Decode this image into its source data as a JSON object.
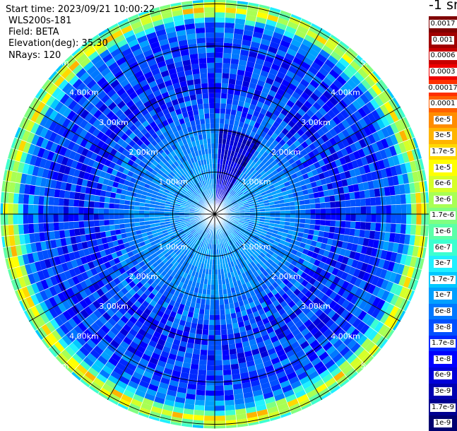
{
  "info": {
    "start_time": "Start time: 2023/09/21 10:00:22",
    "instrument": "WLS200s-181",
    "field": "Field: BETA",
    "elevation": "Elevation(deg): 35.30",
    "nrays": "NRays: 120"
  },
  "colorbar": {
    "title": "-1 sr",
    "entries": [
      {
        "label": "0.0017",
        "color": "#7f0000"
      },
      {
        "label": "0.001",
        "color": "#a00000"
      },
      {
        "label": "0.0006",
        "color": "#c80000"
      },
      {
        "label": "0.0003",
        "color": "#ee0000"
      },
      {
        "label": "0.00017",
        "color": "#ff3000"
      },
      {
        "label": "0.0001",
        "color": "#ff6000"
      },
      {
        "label": "6e-5",
        "color": "#ff8c00"
      },
      {
        "label": "3e-5",
        "color": "#ffb400"
      },
      {
        "label": "1.7e-5",
        "color": "#ffd800"
      },
      {
        "label": "1e-5",
        "color": "#ffff00"
      },
      {
        "label": "6e-6",
        "color": "#d6ff28"
      },
      {
        "label": "3e-6",
        "color": "#a8ff54"
      },
      {
        "label": "1.7e-6",
        "color": "#80ff80"
      },
      {
        "label": "1e-6",
        "color": "#5cffa8"
      },
      {
        "label": "6e-7",
        "color": "#3cffd0"
      },
      {
        "label": "3e-7",
        "color": "#20f0ff"
      },
      {
        "label": "1.7e-7",
        "color": "#00c8ff"
      },
      {
        "label": "1e-7",
        "color": "#00a0ff"
      },
      {
        "label": "6e-8",
        "color": "#0078ff"
      },
      {
        "label": "3e-8",
        "color": "#0050ff"
      },
      {
        "label": "1.7e-8",
        "color": "#0028ff"
      },
      {
        "label": "1e-8",
        "color": "#0000ff"
      },
      {
        "label": "6e-9",
        "color": "#0000d8"
      },
      {
        "label": "3e-9",
        "color": "#0000b0"
      },
      {
        "label": "1.7e-9",
        "color": "#000090"
      },
      {
        "label": "1e-9",
        "color": "#000070"
      }
    ]
  },
  "chart_data": {
    "type": "heatmap",
    "projection": "polar (PPI scan)",
    "field": "BETA",
    "nrays": 120,
    "range_rings_km": [
      1.0,
      2.0,
      3.0,
      4.0,
      5.0
    ],
    "ring_labels": [
      "1.00km",
      "2.00km",
      "3.00km",
      "4.00km",
      "5.00km"
    ],
    "max_range_km": 5.1,
    "spokes_deg": [
      0,
      30,
      60,
      90,
      120,
      150,
      180,
      210,
      240,
      270,
      300,
      330
    ],
    "log_scale": true,
    "color_range": [
      1e-09,
      0.0017
    ],
    "approx_profile_log10_beta": [
      {
        "range_km": 0.1,
        "value": -7.0
      },
      {
        "range_km": 1.0,
        "value": -7.0
      },
      {
        "range_km": 2.0,
        "value": -7.2
      },
      {
        "range_km": 2.5,
        "value": -7.5
      },
      {
        "range_km": 3.0,
        "value": -7.7
      },
      {
        "range_km": 4.0,
        "value": -7.6
      },
      {
        "range_km": 4.55,
        "value": -7.3
      },
      {
        "range_km": 4.75,
        "value": -5.9
      },
      {
        "range_km": 4.9,
        "value": -4.8
      },
      {
        "range_km": 5.05,
        "value": -6.2
      }
    ],
    "low_signal_sector_deg": [
      2,
      34
    ]
  }
}
